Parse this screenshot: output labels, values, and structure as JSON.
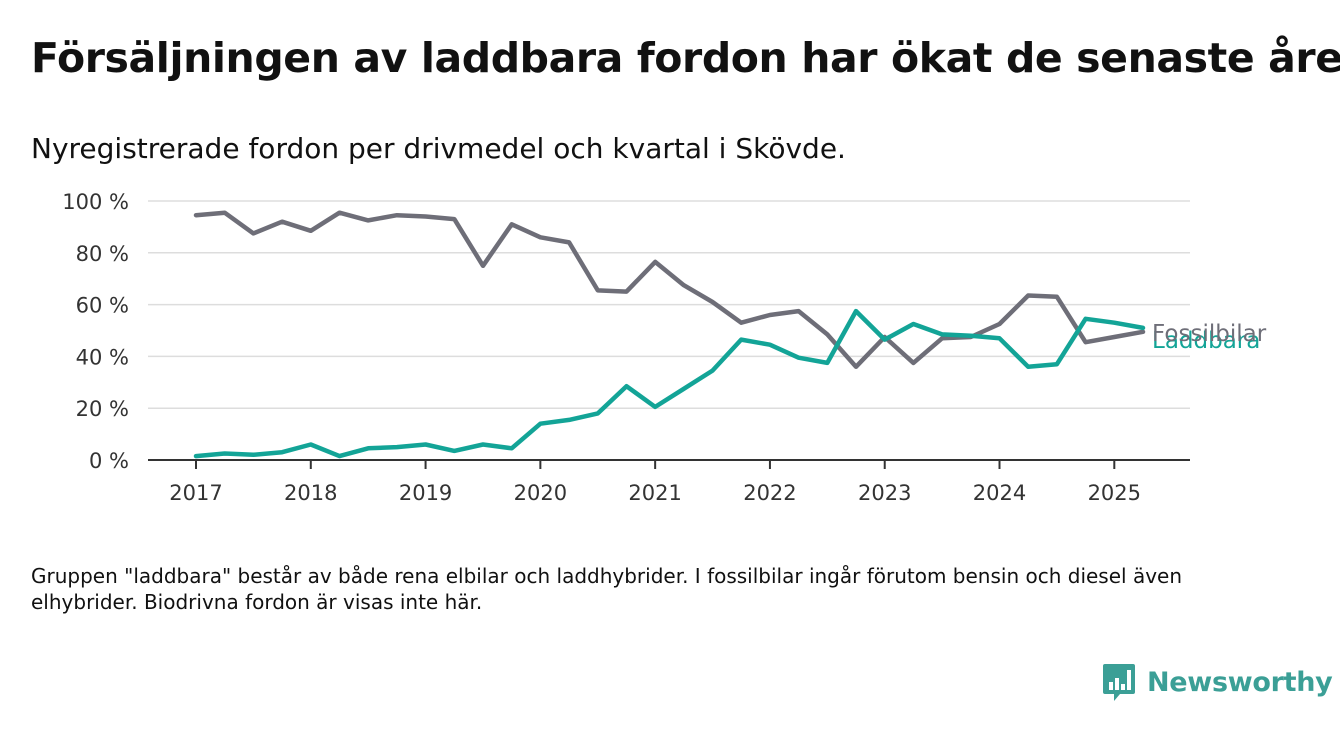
{
  "title": "Försäljningen av laddbara fordon har ökat de senaste åren",
  "subtitle": "Nyregistrerade fordon per drivmedel och kvartal i Skövde.",
  "note": "Gruppen \"laddbara\" består av både rena elbilar och laddhybrider. I fossilbilar ingår förutom bensin och diesel även elhybrider. Biodrivna fordon är visas inte här.",
  "brand": {
    "name": "Newsworthy",
    "color": "#3b9f96"
  },
  "chart_data": {
    "type": "line",
    "x_unit": "quarter",
    "x": [
      "2017-Q1",
      "2017-Q2",
      "2017-Q3",
      "2017-Q4",
      "2018-Q1",
      "2018-Q2",
      "2018-Q3",
      "2018-Q4",
      "2019-Q1",
      "2019-Q2",
      "2019-Q3",
      "2019-Q4",
      "2020-Q1",
      "2020-Q2",
      "2020-Q3",
      "2020-Q4",
      "2021-Q1",
      "2021-Q2",
      "2021-Q3",
      "2021-Q4",
      "2022-Q1",
      "2022-Q2",
      "2022-Q3",
      "2022-Q4",
      "2023-Q1",
      "2023-Q2",
      "2023-Q3",
      "2023-Q4",
      "2024-Q1",
      "2024-Q2",
      "2024-Q3",
      "2024-Q4",
      "2025-Q1",
      "2025-Q2"
    ],
    "xticks": [
      "2017",
      "2018",
      "2019",
      "2020",
      "2021",
      "2022",
      "2023",
      "2024",
      "2025"
    ],
    "yticks": [
      "0 %",
      "20 %",
      "40 %",
      "60 %",
      "80 %",
      "100 %"
    ],
    "ylim": [
      0,
      100
    ],
    "grid": true,
    "series": [
      {
        "name": "Fossilbilar",
        "color": "#6e6e78",
        "values": [
          94.5,
          95.5,
          87.5,
          92,
          88.5,
          95.5,
          92.5,
          94.5,
          94,
          93,
          75,
          91,
          86,
          84,
          65.5,
          65,
          76.5,
          67.5,
          61,
          53,
          56,
          57.5,
          48.5,
          36,
          47.5,
          37.5,
          47,
          47.5,
          52.5,
          63.5,
          63,
          45.5,
          47.5,
          49.5
        ]
      },
      {
        "name": "Laddbara",
        "color": "#13a497",
        "values": [
          1.5,
          2.5,
          2,
          3,
          6,
          1.5,
          4.5,
          5,
          6,
          3.5,
          6,
          4.5,
          14,
          15.5,
          18,
          28.5,
          20.5,
          27.5,
          34.5,
          46.5,
          44.5,
          39.5,
          37.5,
          57.5,
          46.5,
          52.5,
          48.5,
          48,
          47,
          36,
          37,
          54.5,
          53,
          51
        ]
      }
    ]
  }
}
